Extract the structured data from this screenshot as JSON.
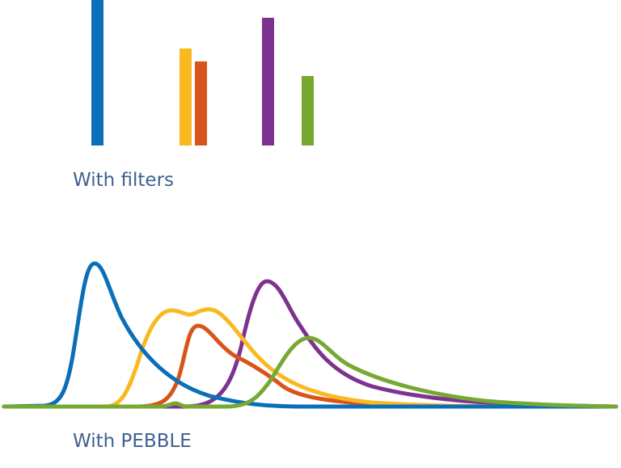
{
  "top_label": "With filters",
  "bottom_label": "With PEBBLE"
}
